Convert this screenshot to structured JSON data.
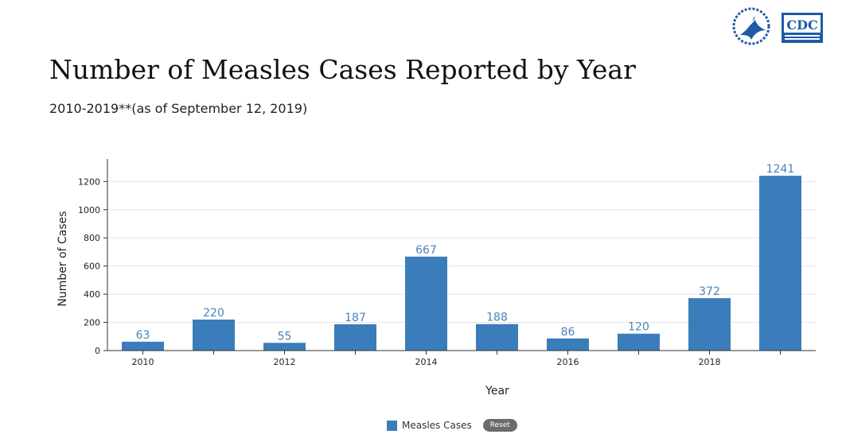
{
  "logos": {
    "hhs": "hhs-eagle-seal",
    "cdc": "CDC"
  },
  "header": {
    "title": "Number of Measles Cases Reported by Year",
    "subtitle": "2010-2019**(as of September 12, 2019)"
  },
  "colors": {
    "bar": "#3a7dba",
    "label": "#4a84bd",
    "grid": "#e6e6e6",
    "axis": "#333333"
  },
  "legend": {
    "label": "Measles Cases",
    "reset_label": "Reset"
  },
  "chart_data": {
    "type": "bar",
    "categories": [
      "2010",
      "2011",
      "2012",
      "2013",
      "2014",
      "2015",
      "2016",
      "2017",
      "2018",
      "2019"
    ],
    "tick_labels": [
      "2010",
      "",
      "2012",
      "",
      "2014",
      "",
      "2016",
      "",
      "2018",
      ""
    ],
    "series": [
      {
        "name": "Measles Cases",
        "values": [
          63,
          220,
          55,
          187,
          667,
          188,
          86,
          120,
          372,
          1241
        ]
      }
    ],
    "xlabel": "Year",
    "ylabel": "Number of Cases",
    "ylim": [
      0,
      1360
    ],
    "yticks": [
      0,
      200,
      400,
      600,
      800,
      1000,
      1200
    ],
    "grid": true,
    "legend_position": "bottom"
  }
}
